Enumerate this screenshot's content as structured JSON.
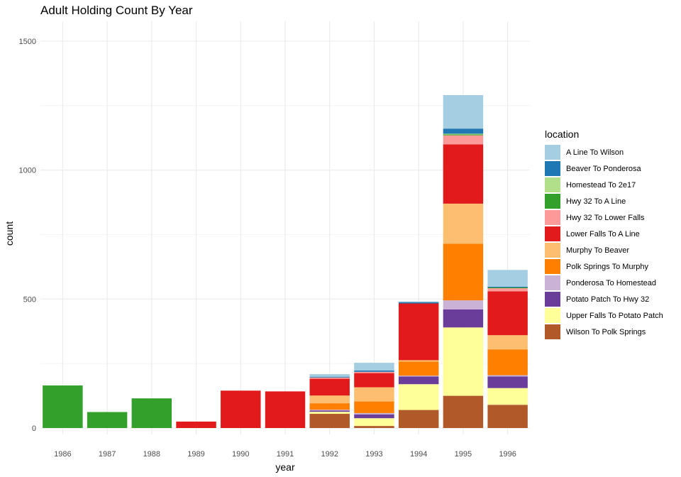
{
  "chart_data": {
    "type": "bar",
    "stacked": true,
    "title": "Adult Holding Count By Year",
    "xlabel": "year",
    "ylabel": "count",
    "ylim": [
      0,
      1600
    ],
    "yticks": [
      0,
      500,
      1000,
      1500
    ],
    "grid": true,
    "legend": {
      "title": "location",
      "placement": "right"
    },
    "categories": [
      "1986",
      "1987",
      "1988",
      "1989",
      "1990",
      "1991",
      "1992",
      "1993",
      "1994",
      "1995",
      "1996"
    ],
    "series": [
      {
        "name": "A Line To Wilson",
        "color": "#A6CEE3",
        "values": [
          0,
          0,
          0,
          0,
          0,
          0,
          10,
          30,
          3,
          130,
          65
        ]
      },
      {
        "name": "Beaver To Ponderosa",
        "color": "#1F78B4",
        "values": [
          0,
          0,
          0,
          0,
          0,
          0,
          3,
          5,
          5,
          20,
          3
        ]
      },
      {
        "name": "Homestead To 2e17",
        "color": "#B2DF8A",
        "values": [
          0,
          0,
          0,
          0,
          0,
          0,
          0,
          0,
          0,
          3,
          0
        ]
      },
      {
        "name": "Hwy 32 To A Line",
        "color": "#33A02C",
        "values": [
          165,
          62,
          115,
          0,
          0,
          0,
          0,
          0,
          0,
          3,
          3
        ]
      },
      {
        "name": "Hwy 32 To Lower Falls",
        "color": "#FB9A99",
        "values": [
          0,
          0,
          0,
          0,
          0,
          0,
          5,
          5,
          0,
          35,
          12
        ]
      },
      {
        "name": "Lower Falls To A Line",
        "color": "#E31A1C",
        "values": [
          0,
          0,
          0,
          25,
          145,
          142,
          65,
          55,
          220,
          230,
          170
        ]
      },
      {
        "name": "Murphy To Beaver",
        "color": "#FDBF6F",
        "values": [
          0,
          0,
          0,
          0,
          0,
          0,
          30,
          55,
          5,
          155,
          55
        ]
      },
      {
        "name": "Polk Springs To Murphy",
        "color": "#FF7F00",
        "values": [
          0,
          0,
          0,
          0,
          0,
          0,
          25,
          45,
          55,
          220,
          100
        ]
      },
      {
        "name": "Ponderosa To Homestead",
        "color": "#CAB2D6",
        "values": [
          0,
          0,
          0,
          0,
          0,
          0,
          3,
          5,
          3,
          35,
          5
        ]
      },
      {
        "name": "Potato Patch To Hwy 32",
        "color": "#6A3D9A",
        "values": [
          0,
          0,
          0,
          0,
          0,
          0,
          5,
          15,
          30,
          70,
          45
        ]
      },
      {
        "name": "Upper Falls To Potato Patch",
        "color": "#FFFF99",
        "values": [
          0,
          0,
          0,
          0,
          0,
          0,
          8,
          30,
          100,
          265,
          65
        ]
      },
      {
        "name": "Wilson To Polk Springs",
        "color": "#B15928",
        "values": [
          0,
          0,
          0,
          0,
          0,
          0,
          55,
          8,
          70,
          125,
          90
        ]
      }
    ]
  }
}
